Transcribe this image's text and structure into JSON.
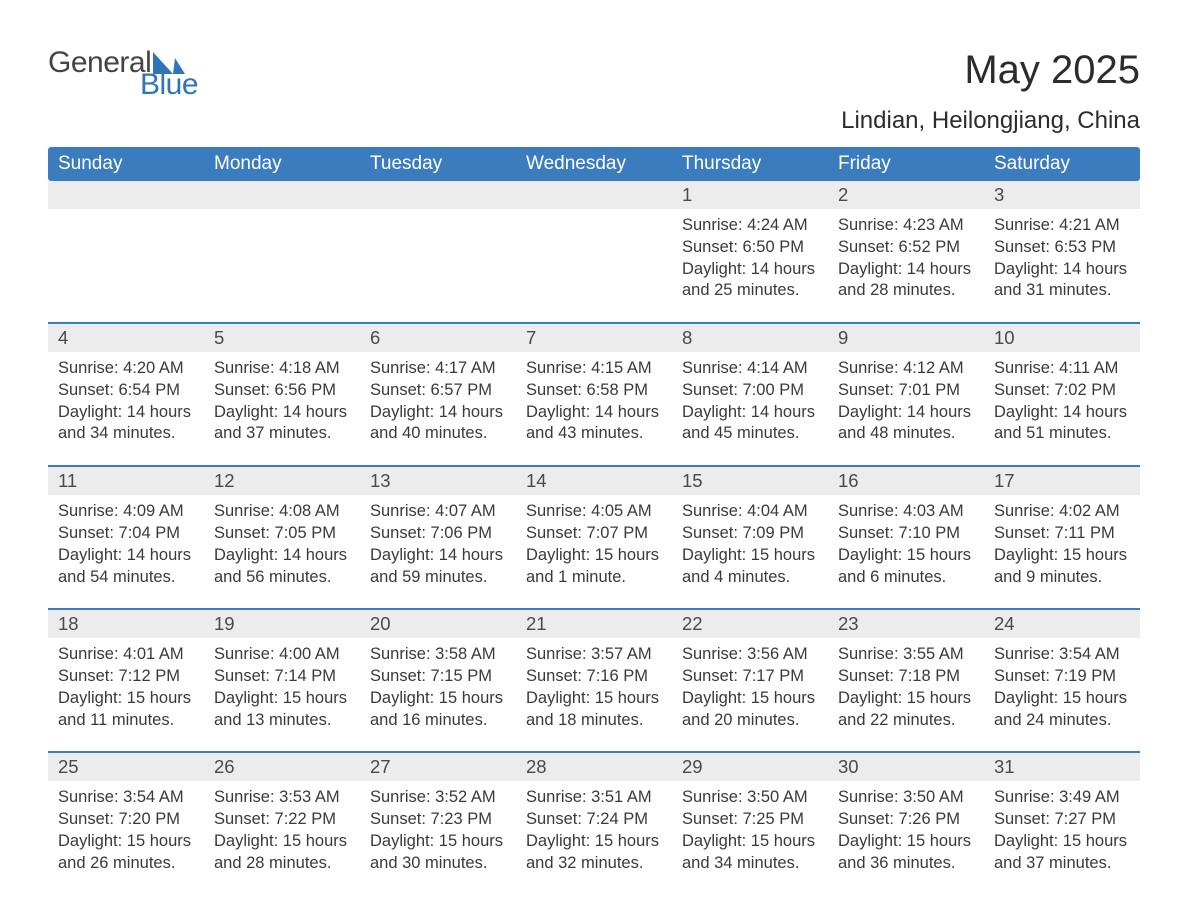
{
  "logo": {
    "general": "General",
    "blue": "Blue"
  },
  "title": {
    "month": "May 2025",
    "location": "Lindian, Heilongjiang, China"
  },
  "colors": {
    "header_bg": "#3b7cbf",
    "header_text": "#ffffff",
    "daynum_bg": "#ececec",
    "daynum_text": "#4a4a4a",
    "body_text": "#3a3a3a",
    "logo_blue": "#2f76b8",
    "logo_gray": "#444444",
    "week_divider": "#3b7cbf",
    "background": "#ffffff"
  },
  "weekdays": [
    "Sunday",
    "Monday",
    "Tuesday",
    "Wednesday",
    "Thursday",
    "Friday",
    "Saturday"
  ],
  "weeks": [
    [
      {
        "n": "",
        "sr": "",
        "ss": "",
        "dl1": "",
        "dl2": "",
        "blank": true
      },
      {
        "n": "",
        "sr": "",
        "ss": "",
        "dl1": "",
        "dl2": "",
        "blank": true
      },
      {
        "n": "",
        "sr": "",
        "ss": "",
        "dl1": "",
        "dl2": "",
        "blank": true
      },
      {
        "n": "",
        "sr": "",
        "ss": "",
        "dl1": "",
        "dl2": "",
        "blank": true
      },
      {
        "n": "1",
        "sr": "Sunrise: 4:24 AM",
        "ss": "Sunset: 6:50 PM",
        "dl1": "Daylight: 14 hours",
        "dl2": "and 25 minutes."
      },
      {
        "n": "2",
        "sr": "Sunrise: 4:23 AM",
        "ss": "Sunset: 6:52 PM",
        "dl1": "Daylight: 14 hours",
        "dl2": "and 28 minutes."
      },
      {
        "n": "3",
        "sr": "Sunrise: 4:21 AM",
        "ss": "Sunset: 6:53 PM",
        "dl1": "Daylight: 14 hours",
        "dl2": "and 31 minutes."
      }
    ],
    [
      {
        "n": "4",
        "sr": "Sunrise: 4:20 AM",
        "ss": "Sunset: 6:54 PM",
        "dl1": "Daylight: 14 hours",
        "dl2": "and 34 minutes."
      },
      {
        "n": "5",
        "sr": "Sunrise: 4:18 AM",
        "ss": "Sunset: 6:56 PM",
        "dl1": "Daylight: 14 hours",
        "dl2": "and 37 minutes."
      },
      {
        "n": "6",
        "sr": "Sunrise: 4:17 AM",
        "ss": "Sunset: 6:57 PM",
        "dl1": "Daylight: 14 hours",
        "dl2": "and 40 minutes."
      },
      {
        "n": "7",
        "sr": "Sunrise: 4:15 AM",
        "ss": "Sunset: 6:58 PM",
        "dl1": "Daylight: 14 hours",
        "dl2": "and 43 minutes."
      },
      {
        "n": "8",
        "sr": "Sunrise: 4:14 AM",
        "ss": "Sunset: 7:00 PM",
        "dl1": "Daylight: 14 hours",
        "dl2": "and 45 minutes."
      },
      {
        "n": "9",
        "sr": "Sunrise: 4:12 AM",
        "ss": "Sunset: 7:01 PM",
        "dl1": "Daylight: 14 hours",
        "dl2": "and 48 minutes."
      },
      {
        "n": "10",
        "sr": "Sunrise: 4:11 AM",
        "ss": "Sunset: 7:02 PM",
        "dl1": "Daylight: 14 hours",
        "dl2": "and 51 minutes."
      }
    ],
    [
      {
        "n": "11",
        "sr": "Sunrise: 4:09 AM",
        "ss": "Sunset: 7:04 PM",
        "dl1": "Daylight: 14 hours",
        "dl2": "and 54 minutes."
      },
      {
        "n": "12",
        "sr": "Sunrise: 4:08 AM",
        "ss": "Sunset: 7:05 PM",
        "dl1": "Daylight: 14 hours",
        "dl2": "and 56 minutes."
      },
      {
        "n": "13",
        "sr": "Sunrise: 4:07 AM",
        "ss": "Sunset: 7:06 PM",
        "dl1": "Daylight: 14 hours",
        "dl2": "and 59 minutes."
      },
      {
        "n": "14",
        "sr": "Sunrise: 4:05 AM",
        "ss": "Sunset: 7:07 PM",
        "dl1": "Daylight: 15 hours",
        "dl2": "and 1 minute."
      },
      {
        "n": "15",
        "sr": "Sunrise: 4:04 AM",
        "ss": "Sunset: 7:09 PM",
        "dl1": "Daylight: 15 hours",
        "dl2": "and 4 minutes."
      },
      {
        "n": "16",
        "sr": "Sunrise: 4:03 AM",
        "ss": "Sunset: 7:10 PM",
        "dl1": "Daylight: 15 hours",
        "dl2": "and 6 minutes."
      },
      {
        "n": "17",
        "sr": "Sunrise: 4:02 AM",
        "ss": "Sunset: 7:11 PM",
        "dl1": "Daylight: 15 hours",
        "dl2": "and 9 minutes."
      }
    ],
    [
      {
        "n": "18",
        "sr": "Sunrise: 4:01 AM",
        "ss": "Sunset: 7:12 PM",
        "dl1": "Daylight: 15 hours",
        "dl2": "and 11 minutes."
      },
      {
        "n": "19",
        "sr": "Sunrise: 4:00 AM",
        "ss": "Sunset: 7:14 PM",
        "dl1": "Daylight: 15 hours",
        "dl2": "and 13 minutes."
      },
      {
        "n": "20",
        "sr": "Sunrise: 3:58 AM",
        "ss": "Sunset: 7:15 PM",
        "dl1": "Daylight: 15 hours",
        "dl2": "and 16 minutes."
      },
      {
        "n": "21",
        "sr": "Sunrise: 3:57 AM",
        "ss": "Sunset: 7:16 PM",
        "dl1": "Daylight: 15 hours",
        "dl2": "and 18 minutes."
      },
      {
        "n": "22",
        "sr": "Sunrise: 3:56 AM",
        "ss": "Sunset: 7:17 PM",
        "dl1": "Daylight: 15 hours",
        "dl2": "and 20 minutes."
      },
      {
        "n": "23",
        "sr": "Sunrise: 3:55 AM",
        "ss": "Sunset: 7:18 PM",
        "dl1": "Daylight: 15 hours",
        "dl2": "and 22 minutes."
      },
      {
        "n": "24",
        "sr": "Sunrise: 3:54 AM",
        "ss": "Sunset: 7:19 PM",
        "dl1": "Daylight: 15 hours",
        "dl2": "and 24 minutes."
      }
    ],
    [
      {
        "n": "25",
        "sr": "Sunrise: 3:54 AM",
        "ss": "Sunset: 7:20 PM",
        "dl1": "Daylight: 15 hours",
        "dl2": "and 26 minutes."
      },
      {
        "n": "26",
        "sr": "Sunrise: 3:53 AM",
        "ss": "Sunset: 7:22 PM",
        "dl1": "Daylight: 15 hours",
        "dl2": "and 28 minutes."
      },
      {
        "n": "27",
        "sr": "Sunrise: 3:52 AM",
        "ss": "Sunset: 7:23 PM",
        "dl1": "Daylight: 15 hours",
        "dl2": "and 30 minutes."
      },
      {
        "n": "28",
        "sr": "Sunrise: 3:51 AM",
        "ss": "Sunset: 7:24 PM",
        "dl1": "Daylight: 15 hours",
        "dl2": "and 32 minutes."
      },
      {
        "n": "29",
        "sr": "Sunrise: 3:50 AM",
        "ss": "Sunset: 7:25 PM",
        "dl1": "Daylight: 15 hours",
        "dl2": "and 34 minutes."
      },
      {
        "n": "30",
        "sr": "Sunrise: 3:50 AM",
        "ss": "Sunset: 7:26 PM",
        "dl1": "Daylight: 15 hours",
        "dl2": "and 36 minutes."
      },
      {
        "n": "31",
        "sr": "Sunrise: 3:49 AM",
        "ss": "Sunset: 7:27 PM",
        "dl1": "Daylight: 15 hours",
        "dl2": "and 37 minutes."
      }
    ]
  ]
}
